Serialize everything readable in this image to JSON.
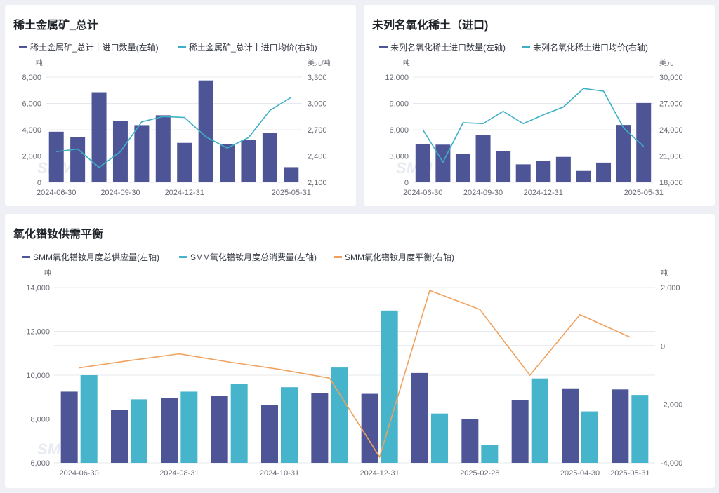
{
  "colors": {
    "bar_primary": "#4d5596",
    "bar_secondary": "#46b5cb",
    "line_primary": "#3db0c6",
    "line_secondary": "#f0a15e"
  },
  "watermark": "SMM",
  "chart_data": [
    {
      "id": "c1",
      "type": "bar",
      "title": "稀土金属矿_总计",
      "left_unit": "吨",
      "right_unit": "美元/吨",
      "categories": [
        "2024-06-30",
        "2024-07-31",
        "2024-08-31",
        "2024-09-30",
        "2024-10-31",
        "2024-11-30",
        "2024-12-31",
        "2025-01-31",
        "2025-02-28",
        "2025-03-31",
        "2025-04-30",
        "2025-05-31"
      ],
      "x_ticks": [
        "2024-06-30",
        "2024-09-30",
        "2024-12-31",
        "2025-05-31"
      ],
      "y_left_ticks": [
        "8,000",
        "6,000",
        "4,000",
        "2,000",
        "0"
      ],
      "y_right_ticks": [
        "3,300",
        "3,000",
        "2,700",
        "2,400",
        "2,100"
      ],
      "ylim_left": [
        0,
        8000
      ],
      "ylim_right": [
        2100,
        3300
      ],
      "series": [
        {
          "name": "稀土金属矿_总计丨进口数量(左轴)",
          "kind": "bar",
          "axis": "left",
          "values": [
            3850,
            3450,
            6850,
            4650,
            4350,
            5100,
            3000,
            7750,
            2900,
            3200,
            3750,
            1150
          ]
        },
        {
          "name": "稀土金属矿_总计丨进口均价(右轴)",
          "kind": "line",
          "axis": "right",
          "values": [
            2450,
            2480,
            2270,
            2450,
            2790,
            2850,
            2840,
            2620,
            2490,
            2610,
            2920,
            3070
          ]
        }
      ]
    },
    {
      "id": "c2",
      "type": "bar",
      "title": "未列名氧化稀土（进口)",
      "left_unit": "吨",
      "right_unit": "美元",
      "categories": [
        "2024-06-30",
        "2024-07-31",
        "2024-08-31",
        "2024-09-30",
        "2024-10-31",
        "2024-11-30",
        "2024-12-31",
        "2025-01-31",
        "2025-02-28",
        "2025-03-31",
        "2025-04-30",
        "2025-05-31"
      ],
      "x_ticks": [
        "2024-06-30",
        "2024-09-30",
        "2024-12-31",
        "2025-05-31"
      ],
      "y_left_ticks": [
        "12,000",
        "9,000",
        "6,000",
        "3,000",
        "0"
      ],
      "y_right_ticks": [
        "30,000",
        "27,000",
        "24,000",
        "21,000",
        "18,000"
      ],
      "ylim_left": [
        0,
        12000
      ],
      "ylim_right": [
        18000,
        30000
      ],
      "series": [
        {
          "name": "未列名氧化稀土进口数量(左轴)",
          "kind": "bar",
          "axis": "left",
          "values": [
            4350,
            4300,
            3250,
            5400,
            3600,
            2050,
            2400,
            2900,
            1300,
            2250,
            6550,
            9050
          ]
        },
        {
          "name": "未列名氧化稀土进口均价(右轴)",
          "kind": "line",
          "axis": "right",
          "values": [
            24000,
            20300,
            24800,
            24700,
            26100,
            24700,
            25700,
            26600,
            28700,
            28400,
            24200,
            22100
          ]
        }
      ]
    },
    {
      "id": "c3",
      "type": "bar",
      "title": "氧化镨钕供需平衡",
      "left_unit": "吨",
      "right_unit": "吨",
      "categories": [
        "2024-06-30",
        "2024-07-31",
        "2024-08-31",
        "2024-09-30",
        "2024-10-31",
        "2024-11-30",
        "2024-12-31",
        "2025-01-31",
        "2025-02-28",
        "2025-03-31",
        "2025-04-30",
        "2025-05-31"
      ],
      "x_ticks": [
        "2024-06-30",
        "2024-08-31",
        "2024-10-31",
        "2024-12-31",
        "2025-02-28",
        "2025-04-30",
        "2025-05-31"
      ],
      "x_tick_index": [
        0,
        2,
        4,
        6,
        8,
        10,
        11
      ],
      "y_left_ticks": [
        "14,000",
        "12,000",
        "10,000",
        "8,000",
        "6,000"
      ],
      "y_right_ticks": [
        "2,000",
        "0",
        "-2,000",
        "-4,000"
      ],
      "ylim_left": [
        6000,
        14000
      ],
      "ylim_right": [
        -4000,
        2000
      ],
      "series": [
        {
          "name": "SMM氧化镨钕月度总供应量(左轴)",
          "kind": "bar",
          "axis": "left",
          "values": [
            9250,
            8400,
            8950,
            9050,
            8650,
            9200,
            9150,
            10100,
            8000,
            8850,
            9400,
            9350
          ]
        },
        {
          "name": "SMM氧化镨钕月度总消费量(左轴)",
          "kind": "bar",
          "axis": "left",
          "values": [
            10000,
            8900,
            9250,
            9600,
            9450,
            10350,
            12950,
            8250,
            6800,
            9850,
            8350,
            9100
          ]
        },
        {
          "name": "SMM氧化镨钕月度平衡(右轴)",
          "kind": "line",
          "axis": "right",
          "values": [
            -750,
            -500,
            -270,
            -550,
            -800,
            -1100,
            -3800,
            1900,
            1250,
            -1000,
            1070,
            300
          ]
        }
      ]
    }
  ]
}
